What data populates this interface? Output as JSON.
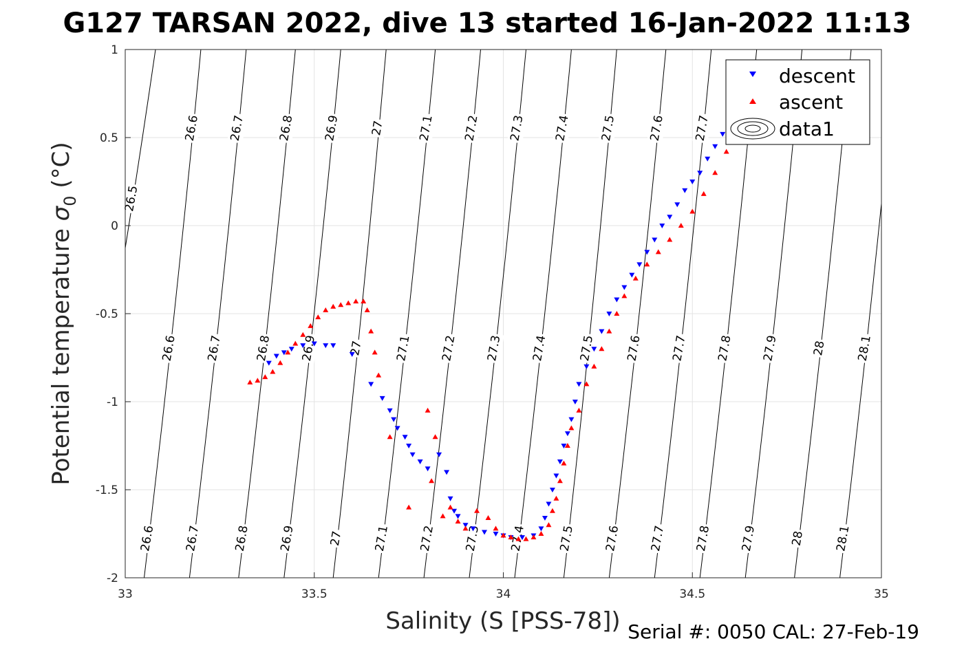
{
  "title": "G127 TARSAN 2022, dive 13 started 16-Jan-2022 11:13",
  "footer": "Serial #: 0050  CAL: 27-Feb-19",
  "chart_data": {
    "type": "scatter",
    "xlabel": "Salinity (S [PSS-78])",
    "ylabel_prefix": "Potential temperature ",
    "ylabel_sigma": "σ",
    "ylabel_sub": "0",
    "ylabel_suffix": " (°C)",
    "xlim": [
      33,
      35
    ],
    "ylim": [
      -2,
      1
    ],
    "xticks": [
      33,
      33.5,
      34,
      34.5,
      35
    ],
    "xtick_labels": [
      "33",
      "33.5",
      "34",
      "34.5",
      "35"
    ],
    "yticks": [
      -2,
      -1.5,
      -1,
      -0.5,
      0,
      0.5,
      1
    ],
    "ytick_labels": [
      "-2",
      "-1.5",
      "-1",
      "-0.5",
      "0",
      "0.5",
      "1"
    ],
    "grid": true,
    "legend_position": "top-right",
    "legend": [
      "descent",
      "ascent",
      "data1"
    ],
    "isopycnals": {
      "levels": [
        26.5,
        26.6,
        26.7,
        26.8,
        26.9,
        27,
        27.1,
        27.2,
        27.3,
        27.4,
        27.5,
        27.6,
        27.7,
        27.8,
        27.9,
        28,
        28.1
      ],
      "labels": [
        "26.5",
        "26.6",
        "26.7",
        "26.8",
        "26.9",
        "27",
        "27.1",
        "27.2",
        "27.3",
        "27.4",
        "27.5",
        "27.6",
        "27.7",
        "27.8",
        "27.9",
        "28",
        "28.1"
      ],
      "line_ends": [
        {
          "s_bottom": 32.85,
          "s_top": 33.08
        },
        {
          "s_bottom": 33.05,
          "s_top": 33.2
        },
        {
          "s_bottom": 33.17,
          "s_top": 33.32
        },
        {
          "s_bottom": 33.3,
          "s_top": 33.45
        },
        {
          "s_bottom": 33.42,
          "s_top": 33.57
        },
        {
          "s_bottom": 33.55,
          "s_top": 33.69
        },
        {
          "s_bottom": 33.67,
          "s_top": 33.82
        },
        {
          "s_bottom": 33.79,
          "s_top": 33.94
        },
        {
          "s_bottom": 33.91,
          "s_top": 34.06
        },
        {
          "s_bottom": 34.03,
          "s_top": 34.18
        },
        {
          "s_bottom": 34.16,
          "s_top": 34.3
        },
        {
          "s_bottom": 34.28,
          "s_top": 34.43
        },
        {
          "s_bottom": 34.4,
          "s_top": 34.55
        },
        {
          "s_bottom": 34.52,
          "s_top": 34.67
        },
        {
          "s_bottom": 34.64,
          "s_top": 34.79
        },
        {
          "s_bottom": 34.77,
          "s_top": 34.92
        },
        {
          "s_bottom": 34.89,
          "s_top": 35.04
        }
      ],
      "label_rows": [
        {
          "theta": 0.55,
          "levels": [
            26.6,
            26.7,
            26.8,
            26.9,
            27,
            27.1,
            27.2,
            27.3,
            27.4,
            27.5,
            27.6,
            27.7
          ]
        },
        {
          "theta": 0.15,
          "levels": [
            26.5
          ]
        },
        {
          "theta": -0.7,
          "levels": [
            26.6,
            26.7,
            26.8,
            26.9,
            27,
            27.1,
            27.2,
            27.3,
            27.4,
            27.5,
            27.6,
            27.7,
            27.8,
            27.9,
            28,
            28.1
          ]
        },
        {
          "theta": -1.78,
          "levels": [
            26.6,
            26.7,
            26.8,
            26.9,
            27,
            27.1,
            27.2,
            27.3,
            27.4,
            27.5,
            27.6,
            27.7,
            27.8,
            27.9,
            28,
            28.1
          ]
        }
      ]
    },
    "series": [
      {
        "name": "descent",
        "marker": "triangle-down",
        "color": "#0000ff",
        "x": [
          33.38,
          33.4,
          33.42,
          33.44,
          33.47,
          33.5,
          33.53,
          33.55,
          33.6,
          33.65,
          33.68,
          33.7,
          33.71,
          33.72,
          33.74,
          33.75,
          33.76,
          33.78,
          33.8,
          33.83,
          33.85,
          33.86,
          33.87,
          33.88,
          33.9,
          33.92,
          33.95,
          33.98,
          34.0,
          34.02,
          34.05,
          34.08,
          34.1,
          34.11,
          34.12,
          34.13,
          34.14,
          34.15,
          34.16,
          34.17,
          34.18,
          34.19,
          34.2,
          34.22,
          34.24,
          34.26,
          34.28,
          34.3,
          34.32,
          34.34,
          34.36,
          34.38,
          34.4,
          34.42,
          34.44,
          34.46,
          34.48,
          34.5,
          34.52,
          34.54,
          34.56,
          34.58,
          34.6
        ],
        "y": [
          -0.78,
          -0.74,
          -0.72,
          -0.7,
          -0.68,
          -0.67,
          -0.68,
          -0.68,
          -0.73,
          -0.9,
          -0.98,
          -1.05,
          -1.1,
          -1.15,
          -1.2,
          -1.25,
          -1.3,
          -1.34,
          -1.38,
          -1.3,
          -1.4,
          -1.55,
          -1.62,
          -1.65,
          -1.7,
          -1.72,
          -1.74,
          -1.75,
          -1.76,
          -1.77,
          -1.77,
          -1.76,
          -1.72,
          -1.66,
          -1.58,
          -1.5,
          -1.42,
          -1.34,
          -1.25,
          -1.18,
          -1.1,
          -1.0,
          -0.9,
          -0.8,
          -0.7,
          -0.6,
          -0.5,
          -0.42,
          -0.35,
          -0.28,
          -0.22,
          -0.15,
          -0.08,
          0.0,
          0.05,
          0.12,
          0.2,
          0.25,
          0.3,
          0.38,
          0.45,
          0.52,
          0.58
        ]
      },
      {
        "name": "ascent",
        "marker": "triangle-up",
        "color": "#ff0000",
        "x": [
          33.33,
          33.35,
          33.37,
          33.39,
          33.41,
          33.43,
          33.45,
          33.47,
          33.49,
          33.51,
          33.53,
          33.55,
          33.57,
          33.59,
          33.61,
          33.63,
          33.64,
          33.65,
          33.66,
          33.67,
          33.7,
          33.75,
          33.8,
          33.81,
          33.82,
          33.84,
          33.86,
          33.88,
          33.9,
          33.93,
          33.96,
          33.98,
          34.0,
          34.02,
          34.04,
          34.06,
          34.08,
          34.1,
          34.12,
          34.13,
          34.14,
          34.15,
          34.16,
          34.17,
          34.18,
          34.2,
          34.22,
          34.24,
          34.26,
          34.28,
          34.3,
          34.32,
          34.35,
          34.38,
          34.41,
          34.44,
          34.47,
          34.5,
          34.53,
          34.56,
          34.59,
          34.62
        ],
        "y": [
          -0.89,
          -0.88,
          -0.86,
          -0.83,
          -0.78,
          -0.72,
          -0.67,
          -0.62,
          -0.57,
          -0.52,
          -0.48,
          -0.46,
          -0.45,
          -0.44,
          -0.43,
          -0.43,
          -0.48,
          -0.6,
          -0.72,
          -0.85,
          -1.2,
          -1.6,
          -1.05,
          -1.45,
          -1.2,
          -1.65,
          -1.6,
          -1.68,
          -1.72,
          -1.62,
          -1.66,
          -1.72,
          -1.76,
          -1.77,
          -1.78,
          -1.78,
          -1.77,
          -1.75,
          -1.7,
          -1.62,
          -1.55,
          -1.45,
          -1.35,
          -1.25,
          -1.15,
          -1.05,
          -0.9,
          -0.8,
          -0.7,
          -0.6,
          -0.5,
          -0.4,
          -0.3,
          -0.22,
          -0.15,
          -0.08,
          0.0,
          0.08,
          0.18,
          0.3,
          0.42,
          0.55
        ]
      }
    ]
  }
}
